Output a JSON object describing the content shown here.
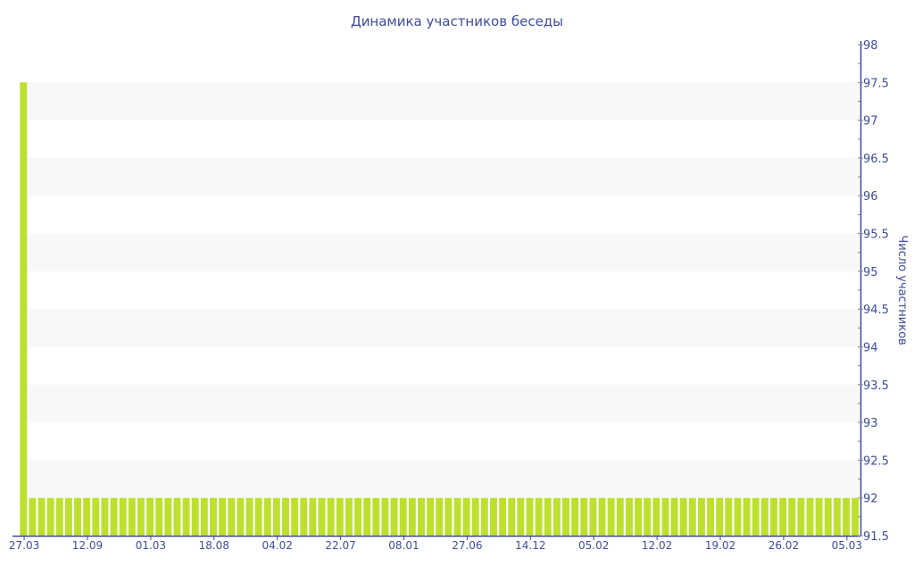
{
  "chart_data": {
    "type": "bar",
    "title": "Динамика участников беседы",
    "ylabel": "Число участников",
    "xlabel": "",
    "ylim": [
      91.5,
      98
    ],
    "yticks": [
      "91.5",
      "92",
      "92.5",
      "93",
      "93.5",
      "94",
      "94.5",
      "95",
      "95.5",
      "96",
      "96.5",
      "97",
      "97.5",
      "98"
    ],
    "xtick_labels": [
      "27.03",
      "12.09",
      "01.03",
      "18.08",
      "04.02",
      "22.07",
      "08.01",
      "27.06",
      "14.12",
      "05.02",
      "12.02",
      "19.02",
      "26.02",
      "05.03"
    ],
    "xtick_every": 7,
    "bar_count": 93,
    "values_note_first": 97.5,
    "first_value": 97.5,
    "other_value": 92,
    "grid": "alternating horizontal bands",
    "legend": "none",
    "y_axis_position": "right",
    "colors": {
      "bar": "#bde02e",
      "axis": "#3e4c9a",
      "band": "#f8f8f8",
      "text": "#3e4c9a"
    }
  }
}
